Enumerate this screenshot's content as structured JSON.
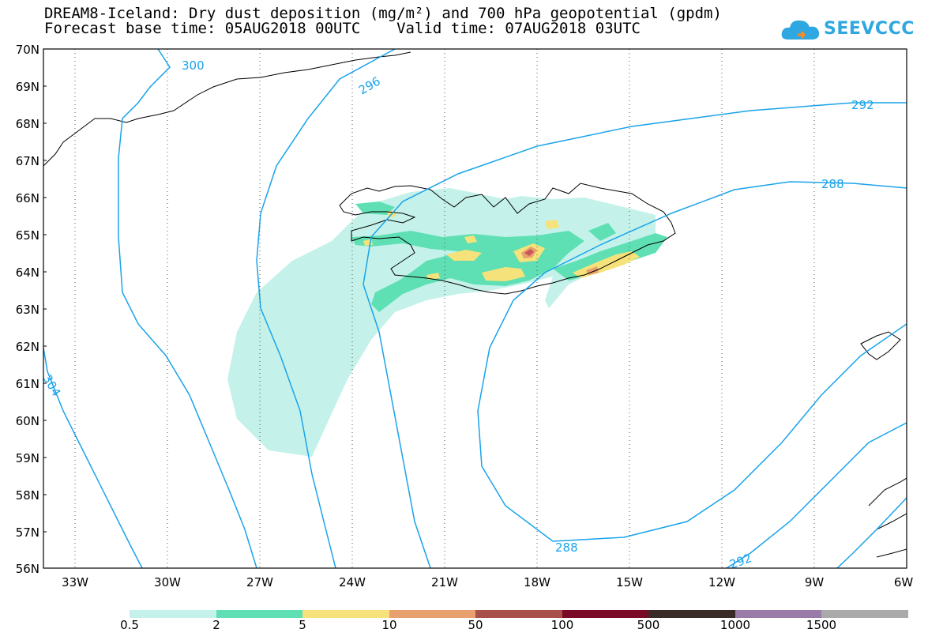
{
  "title": {
    "line1": "DREAM8-Iceland: Dry dust deposition (mg/m²) and 700 hPa geopotential (gpdm)",
    "line2": "Forecast base time: 05AUG2018 00UTC    Valid time: 07AUG2018 03UTC"
  },
  "logo": {
    "text": "SEEVCCC",
    "name": "cloud-logo-icon"
  },
  "colors": {
    "contour": "#1aa3ea",
    "coast": "#000000",
    "grid": "#555555",
    "dust_0_5": "#c4f2ea",
    "dust_2": "#5ee0b4",
    "dust_5": "#f6e27a",
    "dust_10": "#e8a06e",
    "dust_50": "#c8565a",
    "dust_100": "#a0403c",
    "dust_500": "#3a2a28",
    "dust_1000": "#9a7aa6",
    "dust_1500": "#aaaaaa"
  },
  "map": {
    "lat_labels": [
      "70N",
      "69N",
      "68N",
      "67N",
      "66N",
      "65N",
      "64N",
      "63N",
      "62N",
      "61N",
      "60N",
      "59N",
      "58N",
      "57N",
      "56N"
    ],
    "lon_labels": [
      "33W",
      "30W",
      "27W",
      "24W",
      "21W",
      "18W",
      "15W",
      "12W",
      "9W",
      "6W"
    ],
    "contour_labels": [
      "300",
      "296",
      "292",
      "288",
      "288",
      "292",
      "304",
      "292"
    ]
  },
  "colorbar": {
    "ticks": [
      "0.5",
      "2",
      "5",
      "10",
      "50",
      "100",
      "500",
      "1000",
      "1500"
    ],
    "colors": [
      "#c4f2ea",
      "#5ee0b4",
      "#f6e27a",
      "#e8a06e",
      "#c8565a",
      "#a0403c",
      "#7a0a28",
      "#3a2a28",
      "#9a7aa6",
      "#aaaaaa"
    ]
  }
}
